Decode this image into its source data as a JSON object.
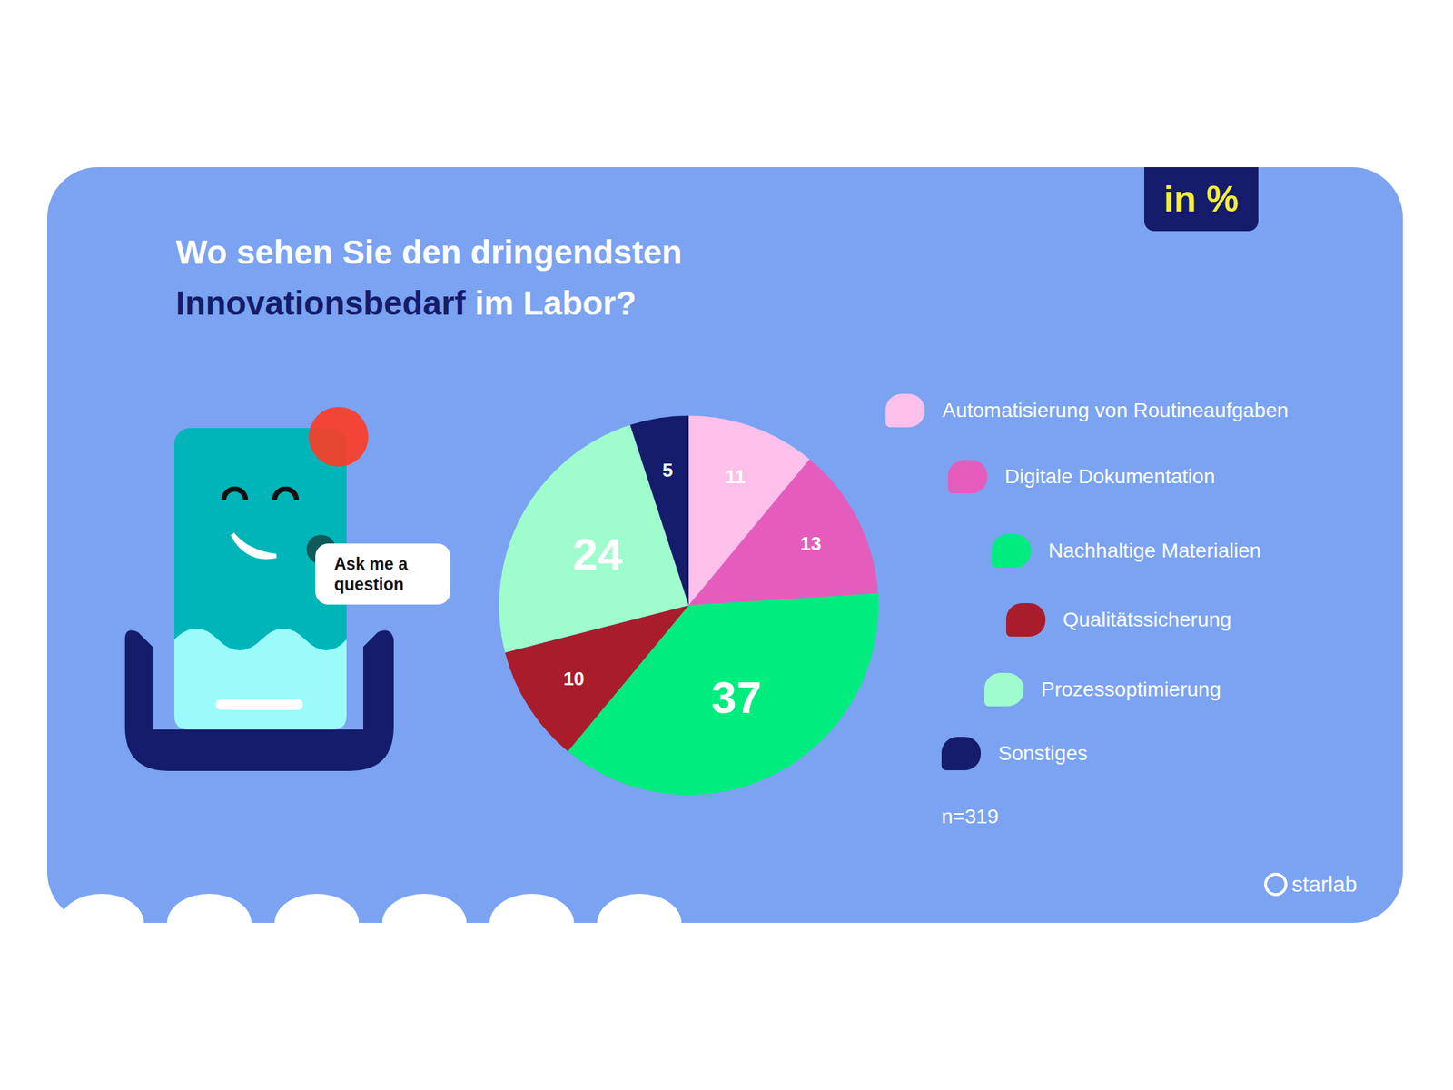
{
  "chart_data": {
    "type": "pie",
    "title": "Wo sehen Sie den dringendsten Innovationsbedarf im Labor?",
    "categories": [
      "Automatisierung von Routineaufgaben",
      "Digitale Dokumentation",
      "Nachhaltige Materialien",
      "Qualitätssicherung",
      "Prozessoptimierung",
      "Sonstiges"
    ],
    "values": [
      11,
      13,
      37,
      10,
      24,
      5
    ],
    "colors": [
      "#fcc0ea",
      "#e55cbd",
      "#00ec7e",
      "#a91c2b",
      "#9ffccc",
      "#141c6b"
    ],
    "data_labels": true,
    "legend": "right",
    "annotations": [
      "in %",
      "n=319",
      "Ask me a question",
      "starlab"
    ]
  }
}
